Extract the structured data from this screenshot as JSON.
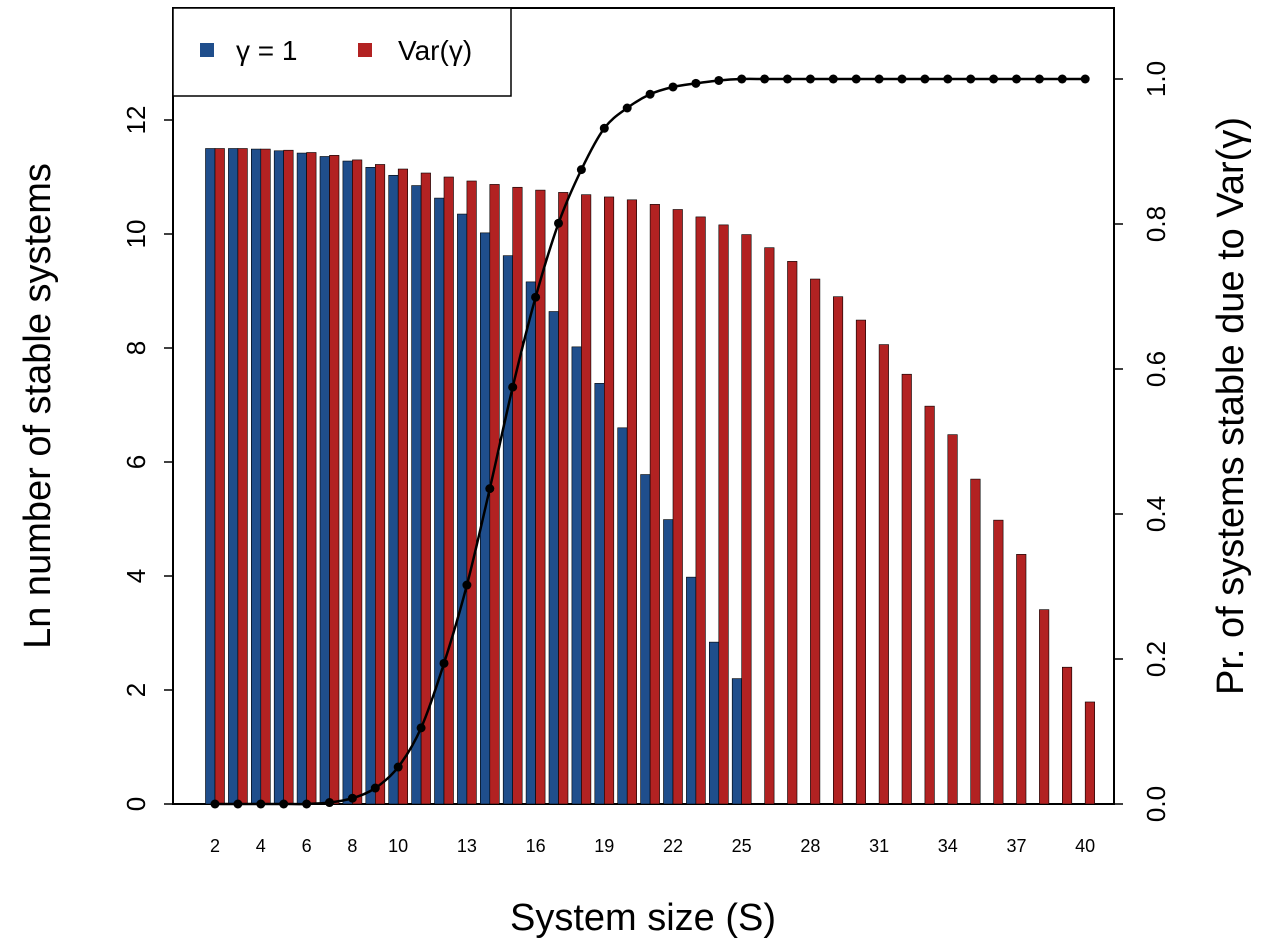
{
  "chart_data": {
    "type": "bar",
    "title": "",
    "xlabel": "System size (S)",
    "ylabel": "Ln number of stable systems",
    "y2label": "Pr. of systems stable due to Var(γ)",
    "ylim": [
      0,
      12.8
    ],
    "y2lim": [
      0,
      1
    ],
    "yticks": [
      "0",
      "2",
      "4",
      "6",
      "8",
      "10",
      "12"
    ],
    "y2ticks": [
      "0.0",
      "0.2",
      "0.4",
      "0.6",
      "0.8",
      "1.0"
    ],
    "x": [
      2,
      3,
      4,
      5,
      6,
      7,
      8,
      9,
      10,
      11,
      12,
      13,
      14,
      15,
      16,
      17,
      18,
      19,
      20,
      21,
      22,
      23,
      24,
      25,
      26,
      27,
      28,
      29,
      30,
      31,
      32,
      33,
      34,
      35,
      36,
      37,
      38,
      39,
      40
    ],
    "xtick_labels": [
      "2",
      "4",
      "6",
      "8",
      "10",
      "13",
      "16",
      "19",
      "22",
      "25",
      "28",
      "31",
      "34",
      "37",
      "40"
    ],
    "legend": {
      "position": "top-left",
      "entries": [
        "γ = 1",
        "Var(γ)"
      ]
    },
    "series": [
      {
        "name": "γ = 1",
        "kind": "bar",
        "axis": "left",
        "color": "#1f4e8c",
        "values": [
          11.5,
          11.5,
          11.49,
          11.46,
          11.42,
          11.36,
          11.28,
          11.17,
          11.03,
          10.85,
          10.63,
          10.35,
          10.02,
          9.62,
          9.16,
          8.64,
          8.02,
          7.38,
          6.6,
          5.78,
          4.99,
          3.98,
          2.84,
          2.2,
          null,
          null,
          null,
          null,
          null,
          null,
          null,
          null,
          null,
          null,
          null,
          null,
          null,
          null,
          null
        ]
      },
      {
        "name": "Var(γ)",
        "kind": "bar",
        "axis": "left",
        "color": "#b22222",
        "values": [
          11.5,
          11.5,
          11.49,
          11.47,
          11.43,
          11.38,
          11.3,
          11.22,
          11.14,
          11.07,
          11.0,
          10.93,
          10.87,
          10.82,
          10.77,
          10.73,
          10.69,
          10.65,
          10.6,
          10.52,
          10.43,
          10.3,
          10.16,
          9.99,
          9.76,
          9.52,
          9.21,
          8.9,
          8.49,
          8.06,
          7.54,
          6.98,
          6.48,
          5.7,
          4.98,
          4.38,
          3.41,
          2.4,
          1.79
        ]
      },
      {
        "name": "",
        "kind": "line",
        "axis": "right",
        "color": "#000000",
        "values": [
          0.0,
          0.0,
          0.0,
          0.0,
          0.0,
          0.002,
          0.008,
          0.022,
          0.051,
          0.105,
          0.194,
          0.302,
          0.435,
          0.575,
          0.699,
          0.801,
          0.875,
          0.932,
          0.96,
          0.979,
          0.989,
          0.994,
          0.998,
          1.0,
          1.0,
          1.0,
          1.0,
          1.0,
          1.0,
          1.0,
          1.0,
          1.0,
          1.0,
          1.0,
          1.0,
          1.0,
          1.0,
          1.0,
          1.0
        ]
      }
    ]
  }
}
